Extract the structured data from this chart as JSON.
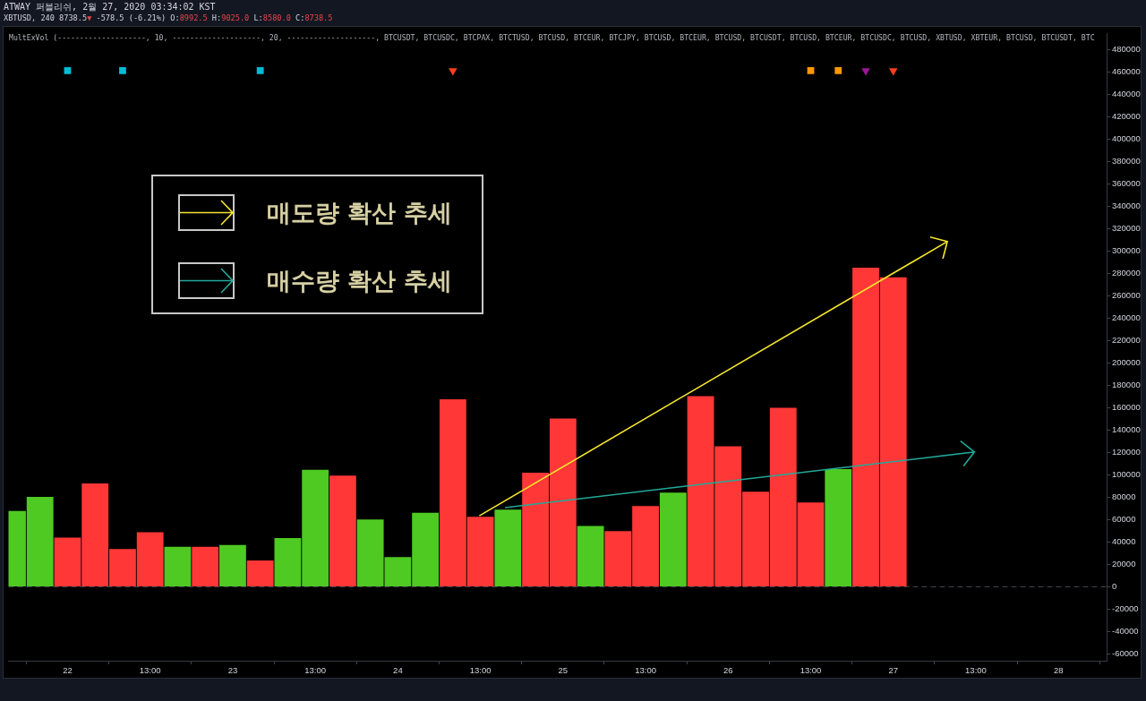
{
  "chart_data": {
    "type": "bar",
    "title": "ATWAY 퍼블리쉬, 2월 27, 2020 03:34:02 KST",
    "subtitle": "XBTUSD, 240 8738.5▼ -578.5 (-6.21%) O:8992.5 H:9025.0 L:8580.0 C:8738.5",
    "annotations": [
      "MultExVol (--------------------, 10, --------------------, 20, --------------------, BTCUSDT, BTCUSDC, BTCPAX, BTCTUSD, BTCUSD, BTCEUR, BTCJPY, BTCUSD, BTCEUR, BTCUSD, BTCUSDT, BTCUSD, BTCEUR, BTCUSDC, BTCUSD, XBTUSD, XBTEUR, BTCUSD, BTCUSDT, BTC",
      "매도량 확산 추세",
      "매수량 확산 추세"
    ],
    "x": [
      "2020-02-21T17:00",
      "2020-02-21T21:00",
      "2020-02-22T01:00",
      "2020-02-22T05:00",
      "2020-02-22T09:00",
      "2020-02-22T13:00",
      "2020-02-22T17:00",
      "2020-02-22T21:00",
      "2020-02-23T01:00",
      "2020-02-23T05:00",
      "2020-02-23T09:00",
      "2020-02-23T13:00",
      "2020-02-23T17:00",
      "2020-02-23T21:00",
      "2020-02-24T01:00",
      "2020-02-24T05:00",
      "2020-02-24T09:00",
      "2020-02-24T13:00",
      "2020-02-24T17:00",
      "2020-02-24T21:00",
      "2020-02-25T01:00",
      "2020-02-25T05:00",
      "2020-02-25T09:00",
      "2020-02-25T13:00",
      "2020-02-25T17:00",
      "2020-02-25T21:00",
      "2020-02-26T01:00",
      "2020-02-26T05:00",
      "2020-02-26T09:00",
      "2020-02-26T13:00",
      "2020-02-26T17:00",
      "2020-02-26T21:00",
      "2020-02-27T01:00"
    ],
    "series": [
      {
        "colors": [
          "#4fca22",
          "#4fca22",
          "#ff3737",
          "#ff3737",
          "#ff3737",
          "#ff3737",
          "#4fca22",
          "#ff3737",
          "#4fca22",
          "#ff3737",
          "#4fca22",
          "#4fca22",
          "#ff3737",
          "#4fca22",
          "#4fca22",
          "#4fca22",
          "#ff3737",
          "#ff3737",
          "#4fca22",
          "#ff3737",
          "#ff3737",
          "#4fca22",
          "#ff3737",
          "#ff3737",
          "#4fca22",
          "#ff3737",
          "#ff3737",
          "#ff3737",
          "#ff3737",
          "#ff3737",
          "#4fca22",
          "#ff3737",
          "#ff3737"
        ],
        "values": [
          67800,
          80400,
          44000,
          92300,
          33800,
          48800,
          35800,
          35800,
          37400,
          23500,
          43500,
          104600,
          99400,
          60100,
          26600,
          66200,
          167600,
          62500,
          69000,
          102000,
          150300,
          54300,
          49800,
          72200,
          84100,
          170300,
          125500,
          85000,
          160000,
          75400,
          105100,
          285100,
          276400
        ]
      },
      {
        "type": "scatter",
        "color": "#00bcd4",
        "marker": "square",
        "x": [
          "2020-02-22T01:00",
          "2020-02-22T09:00",
          "2020-02-23T05:00"
        ],
        "values": [
          461000,
          461000,
          461000
        ]
      },
      {
        "type": "scatter",
        "color": "#ff4019",
        "marker": "triangle",
        "x": [
          "2020-02-24T09:00",
          "2020-02-27T01:00"
        ],
        "values": [
          461000,
          461000
        ]
      },
      {
        "type": "scatter",
        "color": "#ff9800",
        "marker": "square",
        "x": [
          "2020-02-26T13:00",
          "2020-02-26T17:00"
        ],
        "values": [
          461000,
          461000
        ]
      },
      {
        "type": "scatter",
        "color": "#9c169a",
        "marker": "triangle",
        "x": [
          "2020-02-26T21:00"
        ],
        "values": [
          461000
        ]
      }
    ],
    "xlim": [
      "2020-02-21T16:25",
      "2020-02-28T08:00"
    ],
    "xticks": [
      {
        "value": "2020-02-22T01:00",
        "label": "22"
      },
      {
        "value": "2020-02-22T13:00",
        "label": "13:00"
      },
      {
        "value": "2020-02-23T01:00",
        "label": "23"
      },
      {
        "value": "2020-02-23T13:00",
        "label": "13:00"
      },
      {
        "value": "2020-02-24T01:00",
        "label": "24"
      },
      {
        "value": "2020-02-24T13:00",
        "label": "13:00"
      },
      {
        "value": "2020-02-25T01:00",
        "label": "25"
      },
      {
        "value": "2020-02-25T13:00",
        "label": "13:00"
      },
      {
        "value": "2020-02-26T01:00",
        "label": "26"
      },
      {
        "value": "2020-02-26T13:00",
        "label": "13:00"
      },
      {
        "value": "2020-02-27T01:00",
        "label": "27"
      },
      {
        "value": "2020-02-27T13:00",
        "label": "13:00"
      },
      {
        "value": "2020-02-28T01:00",
        "label": "28"
      }
    ],
    "ylim": [
      -66000,
      494000
    ],
    "yticks": [
      -60000,
      -40000,
      -20000,
      0,
      20000,
      40000,
      60000,
      80000,
      100000,
      120000,
      140000,
      160000,
      180000,
      200000,
      220000,
      240000,
      260000,
      280000,
      300000,
      320000,
      340000,
      360000,
      380000,
      400000,
      420000,
      440000,
      460000,
      480000
    ],
    "ref_lines": [
      {
        "axis": "y",
        "value": 0,
        "color": "#434651",
        "line_style": "dashed"
      }
    ]
  }
}
